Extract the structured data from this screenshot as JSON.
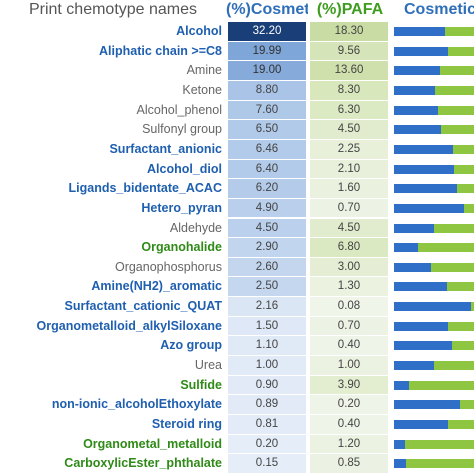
{
  "header": {
    "names": "Print chemotype names",
    "cosmetic": "(%)Cosmetic",
    "pafa": "(%)PAFA",
    "bar": "Cosmetic"
  },
  "colors": {
    "blue_text": "#1f5fb0",
    "green_text": "#2f8a17",
    "gray_text": "#666666",
    "bar_blue": "#2f6fc7",
    "bar_green": "#8ec641"
  },
  "rows": [
    {
      "name": "Alcohol",
      "category": "blue",
      "cosmetic": "32.20",
      "pafa": "18.30",
      "cos_bg": "#1a3f78",
      "cos_fg": "#ffffff",
      "pafa_bg": "#c9dca3",
      "cosmetic_share": 0.64
    },
    {
      "name": "Aliphatic chain >=C8",
      "category": "blue",
      "cosmetic": "19.99",
      "pafa": "9.56",
      "cos_bg": "#7fa6d8",
      "cos_fg": "#333333",
      "pafa_bg": "#d6e5b9",
      "cosmetic_share": 0.68
    },
    {
      "name": "Amine",
      "category": "gray",
      "cosmetic": "19.00",
      "pafa": "13.60",
      "cos_bg": "#86abda",
      "cos_fg": "#333333",
      "pafa_bg": "#cfe0ad",
      "cosmetic_share": 0.58
    },
    {
      "name": "Ketone",
      "category": "gray",
      "cosmetic": "8.80",
      "pafa": "8.30",
      "cos_bg": "#a9c4e6",
      "cos_fg": "#444444",
      "pafa_bg": "#d9e7bd",
      "cosmetic_share": 0.51
    },
    {
      "name": "Alcohol_phenol",
      "category": "gray",
      "cosmetic": "7.60",
      "pafa": "6.30",
      "cos_bg": "#aec8e8",
      "cos_fg": "#444444",
      "pafa_bg": "#dceac4",
      "cosmetic_share": 0.55
    },
    {
      "name": "Sulfonyl group",
      "category": "gray",
      "cosmetic": "6.50",
      "pafa": "4.50",
      "cos_bg": "#b2cae9",
      "cos_fg": "#444444",
      "pafa_bg": "#e1ecce",
      "cosmetic_share": 0.59
    },
    {
      "name": "Surfactant_anionic",
      "category": "blue",
      "cosmetic": "6.46",
      "pafa": "2.25",
      "cos_bg": "#b3cbea",
      "cos_fg": "#444444",
      "pafa_bg": "#e8f0da",
      "cosmetic_share": 0.74
    },
    {
      "name": "Alcohol_diol",
      "category": "blue",
      "cosmetic": "6.40",
      "pafa": "2.10",
      "cos_bg": "#b3cbea",
      "cos_fg": "#444444",
      "pafa_bg": "#e8f0db",
      "cosmetic_share": 0.75
    },
    {
      "name": "Ligands_bidentate_ACAC",
      "category": "blue",
      "cosmetic": "6.20",
      "pafa": "1.60",
      "cos_bg": "#b4ccea",
      "cos_fg": "#444444",
      "pafa_bg": "#eaf1de",
      "cosmetic_share": 0.79
    },
    {
      "name": "Hetero_pyran",
      "category": "blue",
      "cosmetic": "4.90",
      "pafa": "0.70",
      "cos_bg": "#b9cfeb",
      "cos_fg": "#444444",
      "pafa_bg": "#edf3e4",
      "cosmetic_share": 0.88
    },
    {
      "name": "Aldehyde",
      "category": "gray",
      "cosmetic": "4.50",
      "pafa": "4.50",
      "cos_bg": "#bbd0ec",
      "cos_fg": "#444444",
      "pafa_bg": "#e1ecce",
      "cosmetic_share": 0.5
    },
    {
      "name": "Organohalide",
      "category": "green",
      "cosmetic": "2.90",
      "pafa": "6.80",
      "cos_bg": "#c2d5ee",
      "cos_fg": "#444444",
      "pafa_bg": "#dbe9c2",
      "cosmetic_share": 0.3
    },
    {
      "name": "Organophosphorus",
      "category": "gray",
      "cosmetic": "2.60",
      "pafa": "3.00",
      "cos_bg": "#c4d6ee",
      "cos_fg": "#444444",
      "pafa_bg": "#e5eed5",
      "cosmetic_share": 0.46
    },
    {
      "name": "Amine(NH2)_aromatic",
      "category": "blue",
      "cosmetic": "2.50",
      "pafa": "1.30",
      "cos_bg": "#c4d7ee",
      "cos_fg": "#444444",
      "pafa_bg": "#ebf2e0",
      "cosmetic_share": 0.66
    },
    {
      "name": "Surfactant_cationic_QUAT",
      "category": "blue",
      "cosmetic": "2.16",
      "pafa": "0.08",
      "cos_bg": "#dbe6f5",
      "cos_fg": "#444444",
      "pafa_bg": "#f0f5ea",
      "cosmetic_share": 0.96
    },
    {
      "name": "Organometalloid_alkylSiloxane",
      "category": "blue",
      "cosmetic": "1.50",
      "pafa": "0.70",
      "cos_bg": "#dee8f6",
      "cos_fg": "#444444",
      "pafa_bg": "#edf3e4",
      "cosmetic_share": 0.68
    },
    {
      "name": "Azo group",
      "category": "blue",
      "cosmetic": "1.10",
      "pafa": "0.40",
      "cos_bg": "#e0e9f6",
      "cos_fg": "#444444",
      "pafa_bg": "#eef4e7",
      "cosmetic_share": 0.73
    },
    {
      "name": "Urea",
      "category": "gray",
      "cosmetic": "1.00",
      "pafa": "1.00",
      "cos_bg": "#e1eaf7",
      "cos_fg": "#444444",
      "pafa_bg": "#ecf2e2",
      "cosmetic_share": 0.5
    },
    {
      "name": "Sulfide",
      "category": "green",
      "cosmetic": "0.90",
      "pafa": "3.90",
      "cos_bg": "#e2eaf7",
      "cos_fg": "#444444",
      "pafa_bg": "#e3edd0",
      "cosmetic_share": 0.19
    },
    {
      "name": "non-ionic_alcoholEthoxylate",
      "category": "blue",
      "cosmetic": "0.89",
      "pafa": "0.20",
      "cos_bg": "#e2eaf7",
      "cos_fg": "#444444",
      "pafa_bg": "#eff4e9",
      "cosmetic_share": 0.82
    },
    {
      "name": "Steroid ring",
      "category": "blue",
      "cosmetic": "0.81",
      "pafa": "0.40",
      "cos_bg": "#e2ebf7",
      "cos_fg": "#444444",
      "pafa_bg": "#eef4e7",
      "cosmetic_share": 0.67
    },
    {
      "name": "Organometal_metalloid",
      "category": "green",
      "cosmetic": "0.20",
      "pafa": "1.20",
      "cos_bg": "#e5edf8",
      "cos_fg": "#444444",
      "pafa_bg": "#ebf2e1",
      "cosmetic_share": 0.14
    },
    {
      "name": "CarboxylicEster_phthalate",
      "category": "green",
      "cosmetic": "0.15",
      "pafa": "0.85",
      "cos_bg": "#e5edf8",
      "cos_fg": "#444444",
      "pafa_bg": "#ecf2e3",
      "cosmetic_share": 0.15
    }
  ]
}
